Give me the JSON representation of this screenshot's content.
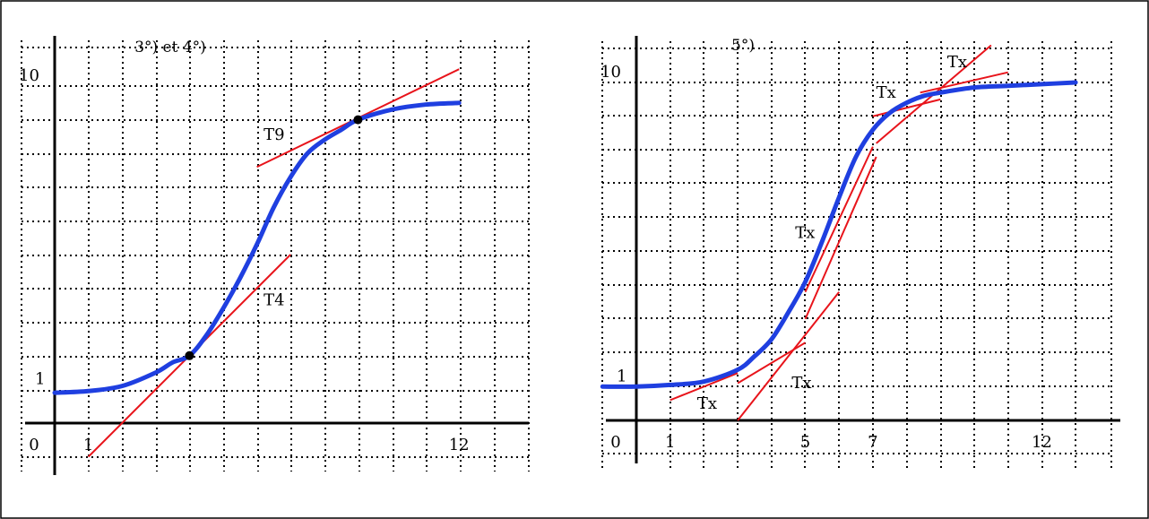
{
  "colors": {
    "curve": "#1f3fe0",
    "tangent": "#e8141b",
    "point": "#000000"
  },
  "chart_data": [
    {
      "type": "line",
      "title": "3°) et 4°)",
      "x_tick_labels": [
        {
          "value": 0,
          "label": "0"
        },
        {
          "value": 1,
          "label": "1"
        },
        {
          "value": 12,
          "label": "12"
        }
      ],
      "y_tick_labels": [
        {
          "value": 1,
          "label": "1"
        },
        {
          "value": 10,
          "label": "10"
        }
      ],
      "grid": true,
      "xlim": [
        -1,
        14
      ],
      "ylim": [
        -1.1,
        11.2
      ],
      "curve": {
        "x": [
          0,
          1,
          2,
          3,
          3.5,
          4,
          4.5,
          5,
          5.5,
          6,
          6.5,
          7,
          7.5,
          8,
          8.5,
          9,
          10,
          11,
          12
        ],
        "y": [
          0.9,
          0.95,
          1.1,
          1.5,
          1.8,
          2.0,
          2.6,
          3.4,
          4.3,
          5.3,
          6.4,
          7.3,
          8.0,
          8.4,
          8.7,
          9.0,
          9.3,
          9.45,
          9.5
        ]
      },
      "points": [
        {
          "x": 4,
          "y": 2.0
        },
        {
          "x": 9,
          "y": 9.0
        }
      ],
      "tangents": [
        {
          "label": "T4",
          "x": [
            1,
            7
          ],
          "y": [
            -1.0,
            5.0
          ],
          "label_at": [
            6.2,
            3.5
          ]
        },
        {
          "label": "T9",
          "x": [
            6,
            12
          ],
          "y": [
            7.6,
            10.5
          ],
          "label_at": [
            6.2,
            8.4
          ]
        }
      ]
    },
    {
      "type": "line",
      "title": "5°)",
      "x_tick_labels": [
        {
          "value": 0,
          "label": "0"
        },
        {
          "value": 1,
          "label": "1"
        },
        {
          "value": 5,
          "label": "5"
        },
        {
          "value": 7,
          "label": "7"
        },
        {
          "value": 12,
          "label": "12"
        }
      ],
      "y_tick_labels": [
        {
          "value": 1,
          "label": "1"
        },
        {
          "value": 10,
          "label": "10"
        }
      ],
      "grid": true,
      "xlim": [
        -1,
        15
      ],
      "ylim": [
        -1.2,
        11.4
      ],
      "curve": {
        "x": [
          -1,
          0,
          1,
          2,
          3,
          3.5,
          4,
          4.5,
          5,
          5.5,
          6,
          6.5,
          7,
          7.5,
          8,
          8.5,
          9,
          10,
          11,
          12,
          13
        ],
        "y": [
          1.0,
          1.0,
          1.05,
          1.15,
          1.5,
          1.9,
          2.4,
          3.2,
          4.1,
          5.3,
          6.6,
          7.8,
          8.6,
          9.1,
          9.4,
          9.6,
          9.7,
          9.85,
          9.9,
          9.95,
          10.0
        ]
      },
      "tangents": [
        {
          "label": "Tx",
          "x": [
            1,
            3
          ],
          "y": [
            0.6,
            1.4
          ],
          "label_at": [
            1.8,
            0.35
          ]
        },
        {
          "label": "Tx",
          "x": [
            3,
            5
          ],
          "y": [
            1.1,
            2.3
          ],
          "label_at": [
            4.6,
            0.95
          ]
        },
        {
          "label": "Tx",
          "x": [
            5,
            7
          ],
          "y": [
            3.8,
            8.1
          ],
          "label_at": [
            4.7,
            5.4
          ]
        },
        {
          "label": "Tx",
          "x": [
            5,
            7.1
          ],
          "y": [
            3.0,
            7.8
          ],
          "label_at": null
        },
        {
          "label": "Tx",
          "x": [
            3,
            6
          ],
          "y": [
            0.0,
            3.8
          ],
          "label_at": null
        },
        {
          "label": "Tx",
          "x": [
            7,
            9
          ],
          "y": [
            9.0,
            9.5
          ],
          "label_at": [
            7.1,
            9.55
          ]
        },
        {
          "label": "Tx",
          "x": [
            7.1,
            10.5
          ],
          "y": [
            8.2,
            11.1
          ],
          "label_at": null
        },
        {
          "label": "Tx",
          "x": [
            8.4,
            11
          ],
          "y": [
            9.7,
            10.3
          ],
          "label_at": [
            9.2,
            10.45
          ]
        }
      ]
    }
  ]
}
